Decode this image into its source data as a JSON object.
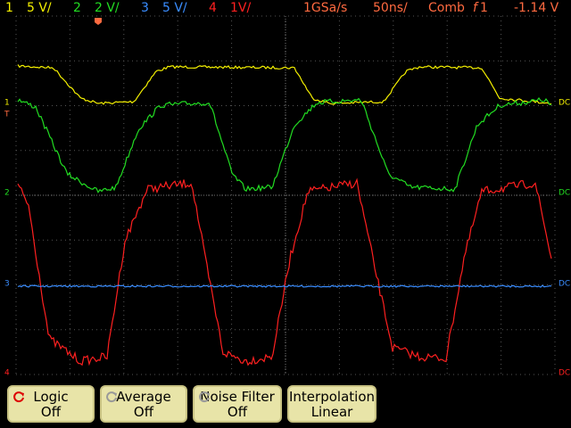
{
  "header": {
    "channels": [
      {
        "number": "1",
        "scale": "5 V/"
      },
      {
        "number": "2",
        "scale": "2 V/"
      },
      {
        "number": "3",
        "scale": "5 V/"
      },
      {
        "number": "4",
        "scale": "1V/"
      }
    ],
    "sample_rate": "1GSa/s",
    "timebase": "50ns/",
    "trigger_mode": "Comb",
    "trigger_source": "1",
    "trigger_level": "-1.14 V"
  },
  "left_markers": [
    "1",
    "T",
    "2",
    "3",
    "4"
  ],
  "right_markers": [
    "DC",
    "DC",
    "DC",
    "DC"
  ],
  "softkeys": [
    {
      "label": "Logic",
      "value": "Off"
    },
    {
      "label": "Average",
      "value": "Off"
    },
    {
      "label": "Noise Filter",
      "value": "Off"
    },
    {
      "label": "Interpolation",
      "value": "Linear"
    }
  ]
}
